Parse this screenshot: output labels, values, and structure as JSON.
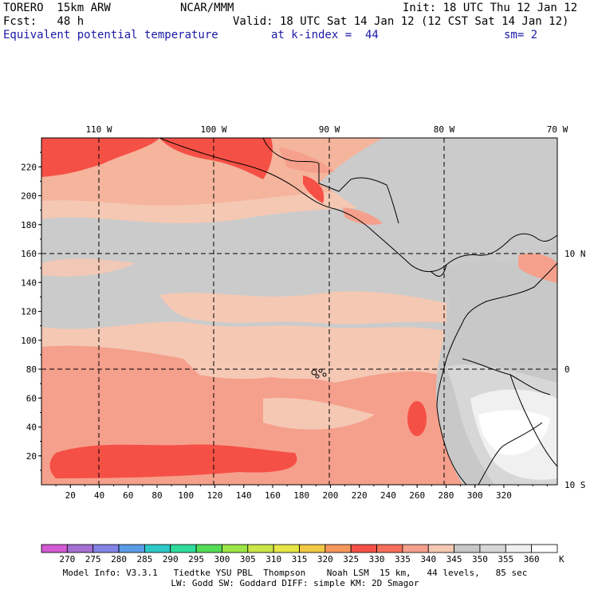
{
  "header": {
    "model_name": "TORERO  15km ARW",
    "center": "NCAR/MMM",
    "init": "Init: 18 UTC Thu 12 Jan 12",
    "fcst": "Fcst:   48 h",
    "valid": "Valid: 18 UTC Sat 14 Jan 12 (12 CST Sat 14 Jan 12)",
    "field": "Equivalent potential temperature",
    "level": "at k-index =  44",
    "smooth": "sm= 2"
  },
  "axes": {
    "top_lon_labels": [
      "110 W",
      "100 W",
      "90 W",
      "80 W",
      "70 W"
    ],
    "right_lat_labels": [
      "10 N",
      "0",
      "10 S"
    ],
    "left_ticks": [
      "220",
      "200",
      "180",
      "160",
      "140",
      "120",
      "100",
      "80",
      "60",
      "40",
      "20"
    ],
    "bottom_ticks": [
      "20",
      "40",
      "60",
      "80",
      "100",
      "120",
      "140",
      "160",
      "180",
      "200",
      "220",
      "240",
      "260",
      "280",
      "300",
      "320"
    ]
  },
  "colorbar": {
    "labels": [
      "270",
      "275",
      "280",
      "285",
      "290",
      "295",
      "300",
      "305",
      "310",
      "315",
      "320",
      "325",
      "330",
      "335",
      "340",
      "345",
      "350",
      "355",
      "360"
    ],
    "unit": "K",
    "colors": [
      "#d25ad2",
      "#a46ed2",
      "#8282e6",
      "#5a9be6",
      "#2ec8c8",
      "#2edc9b",
      "#55dc55",
      "#9be646",
      "#c8e646",
      "#e6e646",
      "#f0c846",
      "#f5965a",
      "#f55046",
      "#f56e5a",
      "#f5a08c",
      "#f5c8b4",
      "#c8c8c8",
      "#d7d7d7",
      "#f0f0f0",
      "#ffffff"
    ]
  },
  "footer": {
    "line1": "Model Info: V3.3.1   Tiedtke YSU PBL  Thompson    Noah LSM  15 km,   44 levels,   85 sec",
    "line2": "LW: Godd SW: Goddard DIFF: simple KM: 2D Smagor"
  }
}
